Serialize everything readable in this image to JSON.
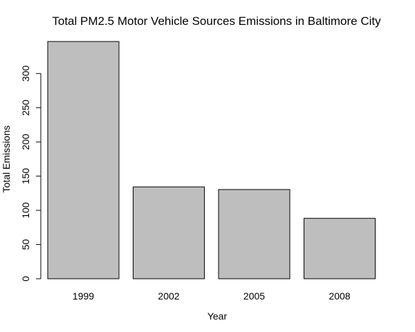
{
  "chart_data": {
    "type": "bar",
    "title": "Total PM2.5 Motor Vehicle Sources Emissions in Baltimore City",
    "xlabel": "Year",
    "ylabel": "Total Emissions",
    "categories": [
      "1999",
      "2002",
      "2005",
      "2008"
    ],
    "values": [
      346.8,
      134.3,
      130.4,
      88.3
    ],
    "yticks": [
      0,
      50,
      100,
      150,
      200,
      250,
      300
    ],
    "ylim": [
      0,
      346.8
    ],
    "grid": false,
    "legend": "none",
    "bar_color": "#bebebe"
  }
}
